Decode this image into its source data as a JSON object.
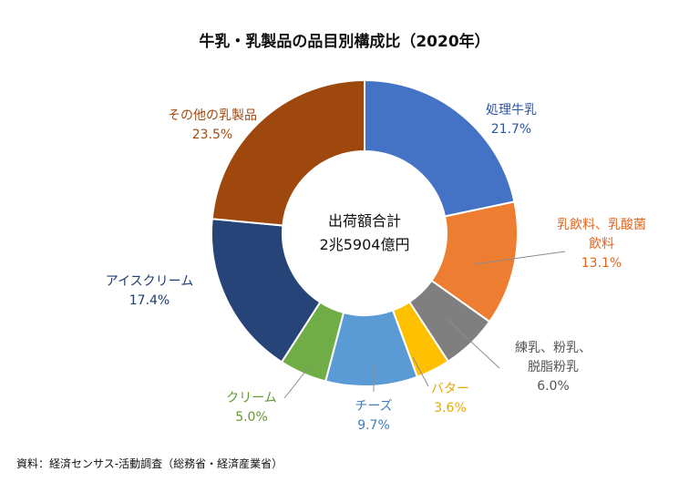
{
  "chart_data": {
    "type": "pie",
    "title": "牛乳・乳製品の品目別構成比（2020年）",
    "center_label": [
      "出荷額合計",
      "2兆5904億円"
    ],
    "slices": [
      {
        "label": [
          "処理牛乳"
        ],
        "value": 21.7,
        "value_text": "21.7%",
        "color": "#4472C4",
        "text_color": "#2E55A8"
      },
      {
        "label": [
          "乳飲料、乳酸菌",
          "飲料"
        ],
        "value": 13.1,
        "value_text": "13.1%",
        "color": "#ED7D31",
        "text_color": "#E0641C"
      },
      {
        "label": [
          "練乳、粉乳、",
          "脱脂粉乳"
        ],
        "value": 6.0,
        "value_text": "6.0%",
        "color": "#7F7F7F",
        "text_color": "#555555"
      },
      {
        "label": [
          "バター"
        ],
        "value": 3.6,
        "value_text": "3.6%",
        "color": "#FFC000",
        "text_color": "#E6A800"
      },
      {
        "label": [
          "チーズ"
        ],
        "value": 9.7,
        "value_text": "9.7%",
        "color": "#5B9BD5",
        "text_color": "#3F7FC0"
      },
      {
        "label": [
          "クリーム"
        ],
        "value": 5.0,
        "value_text": "5.0%",
        "color": "#70AD47",
        "text_color": "#5E9A35"
      },
      {
        "label": [
          "アイスクリーム"
        ],
        "value": 17.4,
        "value_text": "17.4%",
        "color": "#264478",
        "text_color": "#1F3C6E"
      },
      {
        "label": [
          "その他の乳製品"
        ],
        "value": 23.5,
        "value_text": "23.5%",
        "color": "#9E480E",
        "text_color": "#A24A10"
      }
    ],
    "legend": "none"
  },
  "source": "資料：経済センサス-活動調査（総務省・経済産業省）"
}
